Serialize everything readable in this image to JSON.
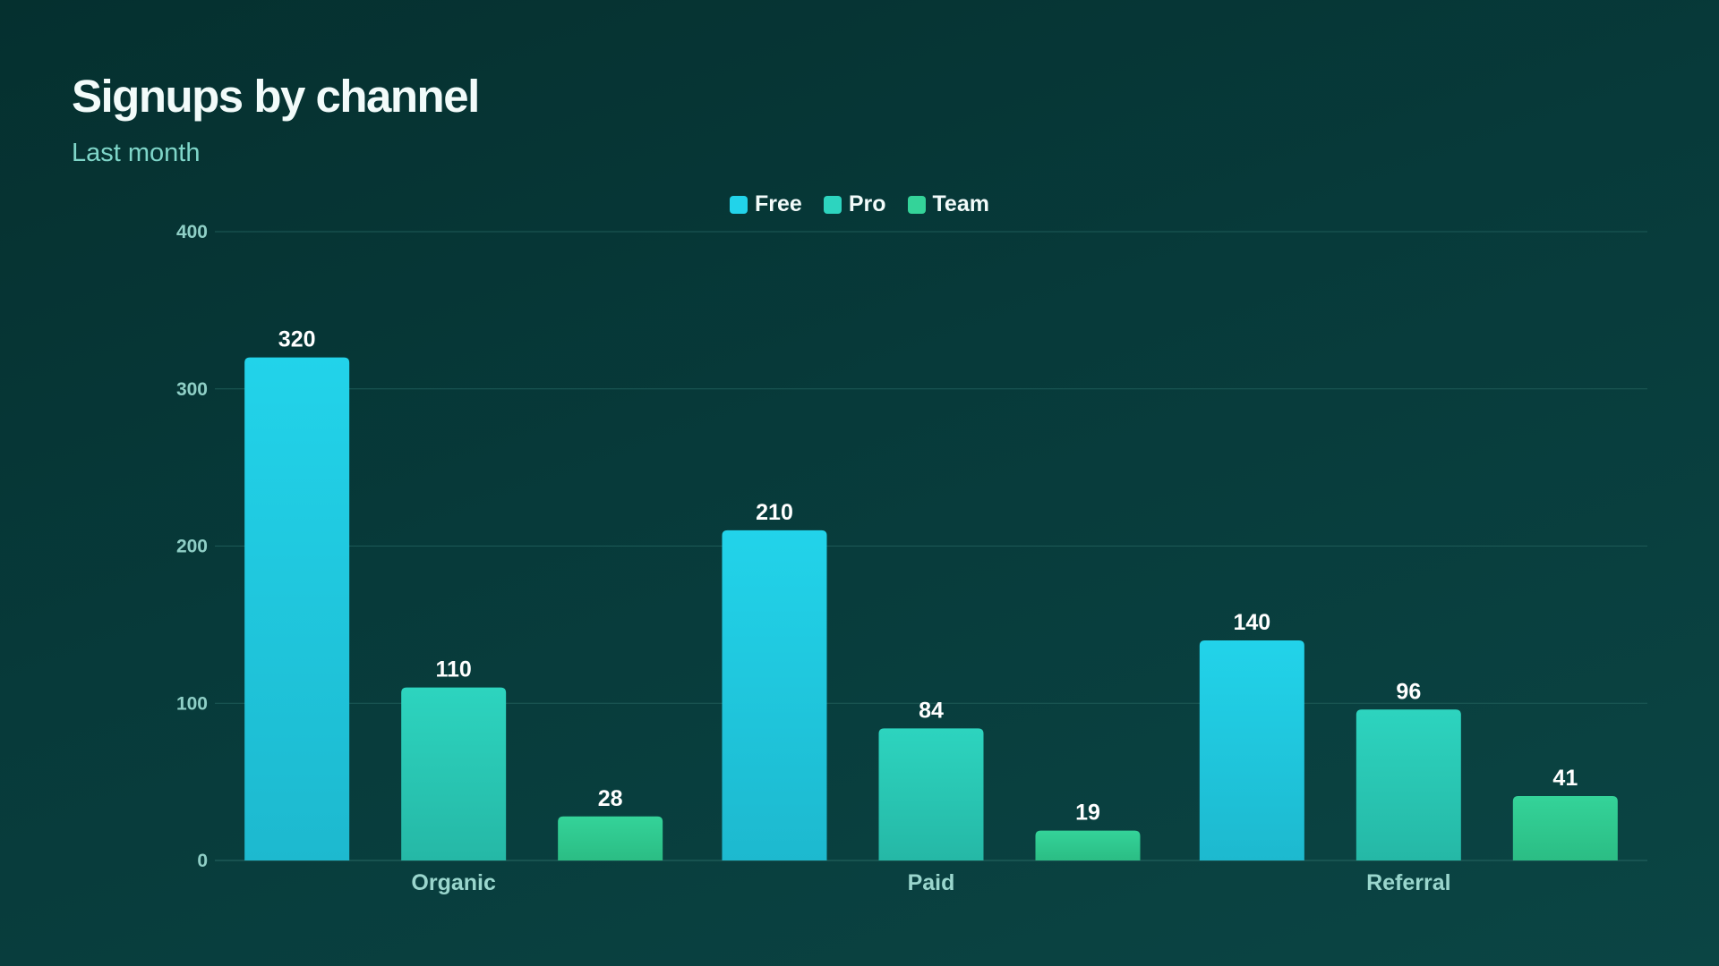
{
  "chart_data": {
    "type": "bar",
    "title": "Signups by channel",
    "subtitle": "Last month",
    "xlabel": "",
    "ylabel": "",
    "categories": [
      "Organic",
      "Paid",
      "Referral"
    ],
    "series": [
      {
        "name": "Free",
        "values": [
          320,
          210,
          140
        ],
        "color_top": "#22d3ea",
        "color_bottom": "#1db9cf"
      },
      {
        "name": "Pro",
        "values": [
          110,
          84,
          96
        ],
        "color_top": "#2dd4bf",
        "color_bottom": "#25b8a6"
      },
      {
        "name": "Team",
        "values": [
          28,
          19,
          41
        ],
        "color_top": "#34d399",
        "color_bottom": "#2bbd84"
      }
    ],
    "ylim": [
      0,
      400
    ],
    "yticks": [
      "0",
      "100",
      "200",
      "300",
      "400"
    ],
    "grid": true,
    "legend_position": "top-center",
    "data_labels": true
  },
  "colors": {
    "background": "#063634",
    "grid": "#1d5a57",
    "tick_text": "#8fcfc6",
    "subtitle": "#7fd6c9"
  }
}
